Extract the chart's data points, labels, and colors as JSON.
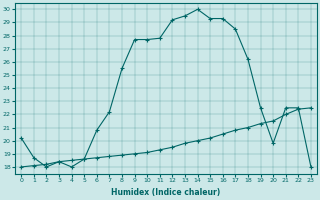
{
  "xlabel": "Humidex (Indice chaleur)",
  "ylabel": "",
  "background_color": "#cce8e8",
  "line_color": "#006666",
  "xlim": [
    -0.5,
    23.5
  ],
  "ylim": [
    17.5,
    30.5
  ],
  "yticks": [
    18,
    19,
    20,
    21,
    22,
    23,
    24,
    25,
    26,
    27,
    28,
    29,
    30
  ],
  "xticks": [
    0,
    1,
    2,
    3,
    4,
    5,
    6,
    7,
    8,
    9,
    10,
    11,
    12,
    13,
    14,
    15,
    16,
    17,
    18,
    19,
    20,
    21,
    22,
    23
  ],
  "curve1_x": [
    0,
    1,
    2,
    3,
    4,
    5,
    6,
    7,
    8,
    9,
    10,
    11,
    12,
    13,
    14,
    15,
    16,
    17,
    18,
    19,
    20,
    21,
    22,
    23
  ],
  "curve1_y": [
    20.2,
    18.7,
    18.0,
    18.4,
    18.0,
    18.6,
    20.8,
    22.2,
    25.5,
    27.7,
    27.7,
    27.8,
    29.2,
    29.5,
    30.0,
    29.3,
    29.3,
    28.5,
    26.2,
    22.5,
    19.8,
    22.5,
    22.5,
    18.0
  ],
  "curve2_x": [
    0,
    1,
    2,
    3,
    4,
    5,
    6,
    7,
    8,
    9,
    10,
    11,
    12,
    13,
    14,
    15,
    16,
    17,
    18,
    19,
    20,
    21,
    22,
    23
  ],
  "curve2_y": [
    18.0,
    18.1,
    18.2,
    18.4,
    18.5,
    18.6,
    18.7,
    18.8,
    18.9,
    19.0,
    19.1,
    19.3,
    19.5,
    19.8,
    20.0,
    20.2,
    20.5,
    20.8,
    21.0,
    21.3,
    21.5,
    22.0,
    22.4,
    22.5
  ]
}
